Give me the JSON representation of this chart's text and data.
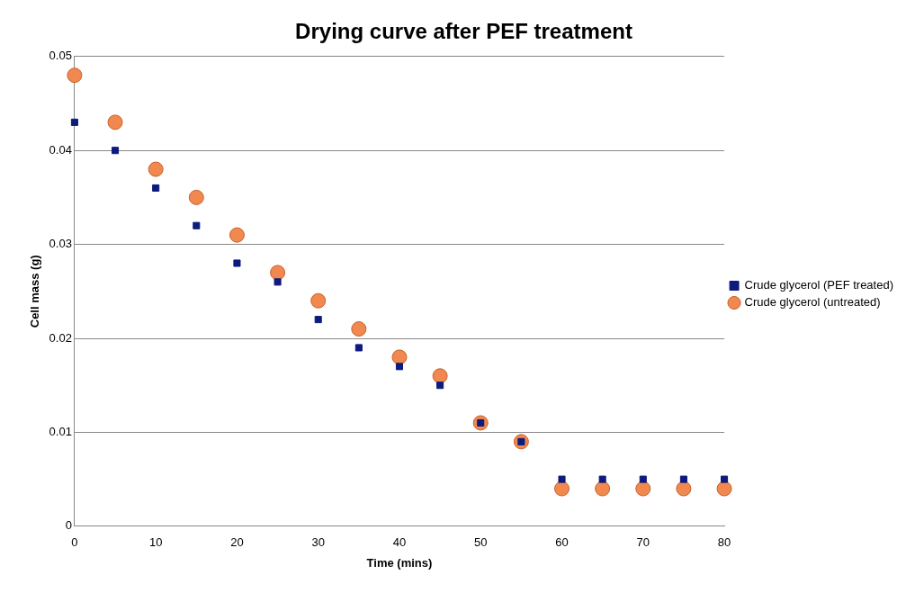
{
  "chart_data": {
    "type": "scatter",
    "title": "Drying curve after PEF treatment",
    "xlabel": "Time (mins)",
    "ylabel": "Cell mass (g)",
    "x": [
      0,
      5,
      10,
      15,
      20,
      25,
      30,
      35,
      40,
      45,
      50,
      55,
      60,
      65,
      70,
      75,
      80
    ],
    "series": [
      {
        "name": "Crude glycerol (PEF treated)",
        "color": "#0d1b7e",
        "marker": "square",
        "values": [
          0.043,
          0.04,
          0.036,
          0.032,
          0.028,
          0.026,
          0.022,
          0.019,
          0.017,
          0.015,
          0.011,
          0.009,
          0.005,
          0.005,
          0.005,
          0.005,
          0.005
        ]
      },
      {
        "name": "Crude glycerol (untreated)",
        "color": "#f08850",
        "marker": "circle",
        "values": [
          0.048,
          0.043,
          0.038,
          0.035,
          0.031,
          0.027,
          0.024,
          0.021,
          0.018,
          0.016,
          0.011,
          0.009,
          0.004,
          0.004,
          0.004,
          0.004,
          0.004
        ]
      }
    ],
    "xlim": [
      0,
      80
    ],
    "xticks": [
      0,
      10,
      20,
      30,
      40,
      50,
      60,
      70,
      80
    ],
    "ylim": [
      0,
      0.05
    ],
    "yticks": [
      0,
      0.01,
      0.02,
      0.03,
      0.04,
      0.05
    ],
    "grid": "y",
    "legend": "right"
  }
}
